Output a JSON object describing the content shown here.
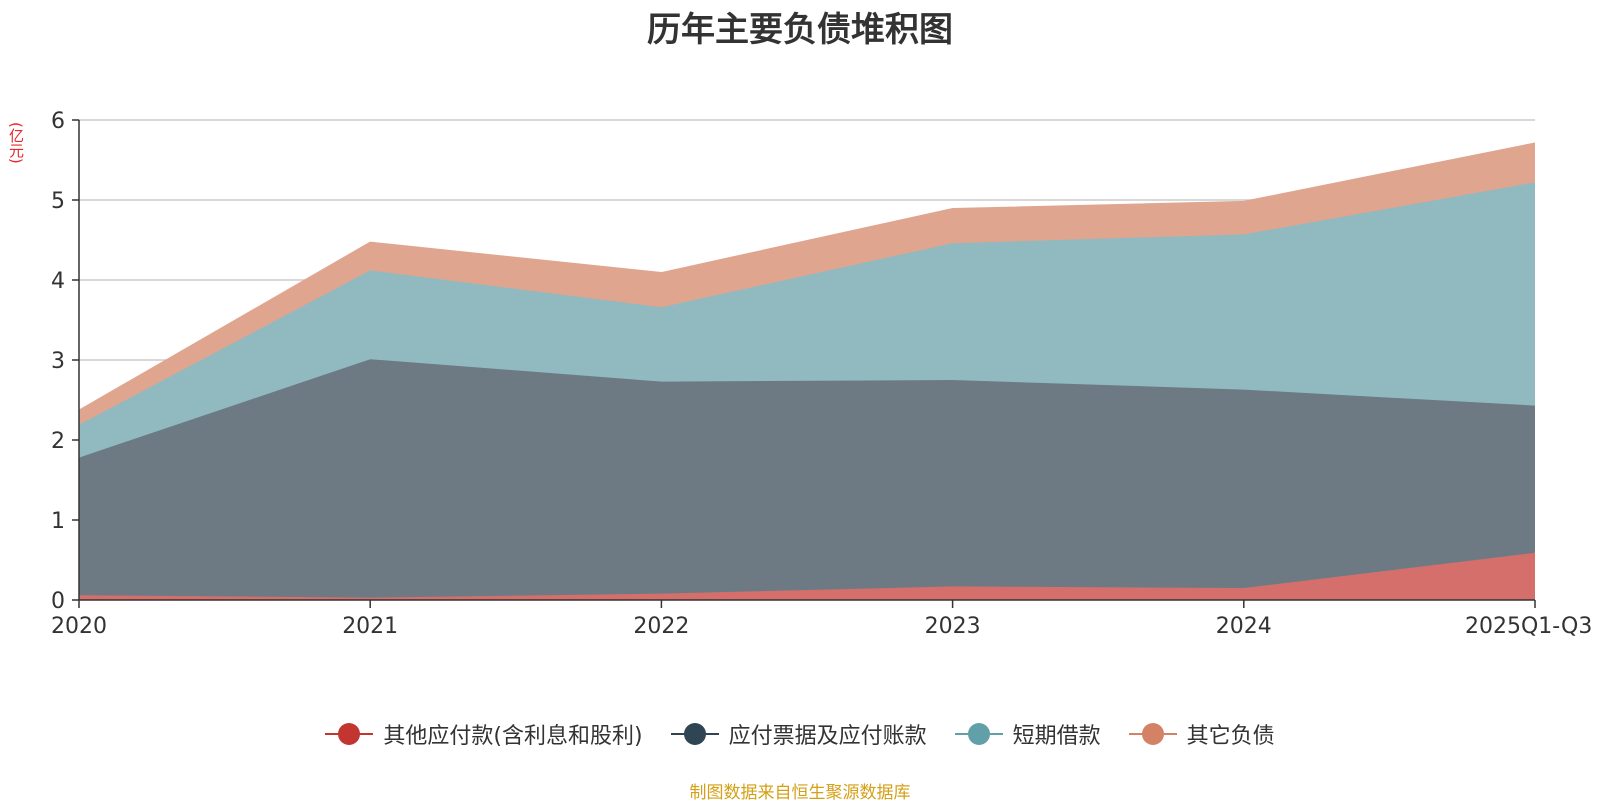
{
  "chart_data": {
    "type": "area",
    "stacked": true,
    "title": "历年主要负债堆积图",
    "unit_label": "(亿元)",
    "categories": [
      "2020",
      "2021",
      "2022",
      "2023",
      "2024",
      "2025Q1-Q3"
    ],
    "ylim": [
      0,
      6
    ],
    "yticks": [
      "0",
      "1",
      "2",
      "3",
      "4",
      "5",
      "6"
    ],
    "grid": true,
    "legend_position": "bottom",
    "series": [
      {
        "name": "其他应付款(含利息和股利)",
        "color": "#c23531",
        "area_color": "#d46f6c",
        "values": [
          0.06,
          0.03,
          0.08,
          0.17,
          0.15,
          0.59
        ]
      },
      {
        "name": "应付票据及应付账款",
        "color": "#2f4554",
        "area_color": "#6d7a84",
        "values": [
          1.72,
          2.98,
          2.65,
          2.58,
          2.48,
          1.84
        ]
      },
      {
        "name": "短期借款",
        "color": "#61a0a8",
        "area_color": "#90bac0",
        "values": [
          0.41,
          1.11,
          0.93,
          1.71,
          1.94,
          2.79
        ]
      },
      {
        "name": "其它负债",
        "color": "#d48265",
        "area_color": "#dfa58f",
        "values": [
          0.18,
          0.35,
          0.43,
          0.43,
          0.41,
          0.49
        ]
      }
    ]
  },
  "source_note": "制图数据来自恒生聚源数据库"
}
